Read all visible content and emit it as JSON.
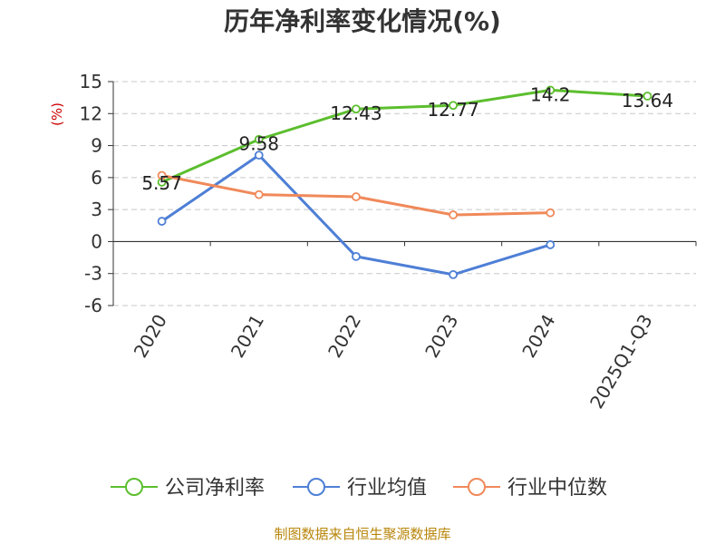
{
  "title": "历年净利率变化情况(%)",
  "source": "制图数据来自恒生聚源数据库",
  "colors": {
    "company": "#5cbe2e",
    "industry_avg": "#4e7fd6",
    "industry_median": "#f0895a",
    "grid": "#c8c8c8",
    "axis": "#333333",
    "unit": "#cc0000",
    "source": "#b8860b"
  },
  "chart_data": {
    "type": "line",
    "title": "历年净利率变化情况(%)",
    "ylabel": "(%)",
    "xlabel": "",
    "categories": [
      "2020",
      "2021",
      "2022",
      "2023",
      "2024",
      "2025Q1-Q3"
    ],
    "ylim": [
      -6,
      15
    ],
    "yticks": [
      15,
      12,
      9,
      6,
      3,
      0,
      -3,
      -6
    ],
    "grid": true,
    "legend_position": "bottom",
    "series": [
      {
        "name": "公司净利率",
        "color": "#5cbe2e",
        "values": [
          5.57,
          9.58,
          12.43,
          12.77,
          14.2,
          13.64
        ],
        "labels": [
          "5.57",
          "9.58",
          "12.43",
          "12.77",
          "14.2",
          "13.64"
        ]
      },
      {
        "name": "行业均值",
        "color": "#4e7fd6",
        "values": [
          1.9,
          8.1,
          -1.4,
          -3.1,
          -0.3,
          null
        ]
      },
      {
        "name": "行业中位数",
        "color": "#f0895a",
        "values": [
          6.2,
          4.4,
          4.2,
          2.5,
          2.7,
          null
        ]
      }
    ]
  }
}
